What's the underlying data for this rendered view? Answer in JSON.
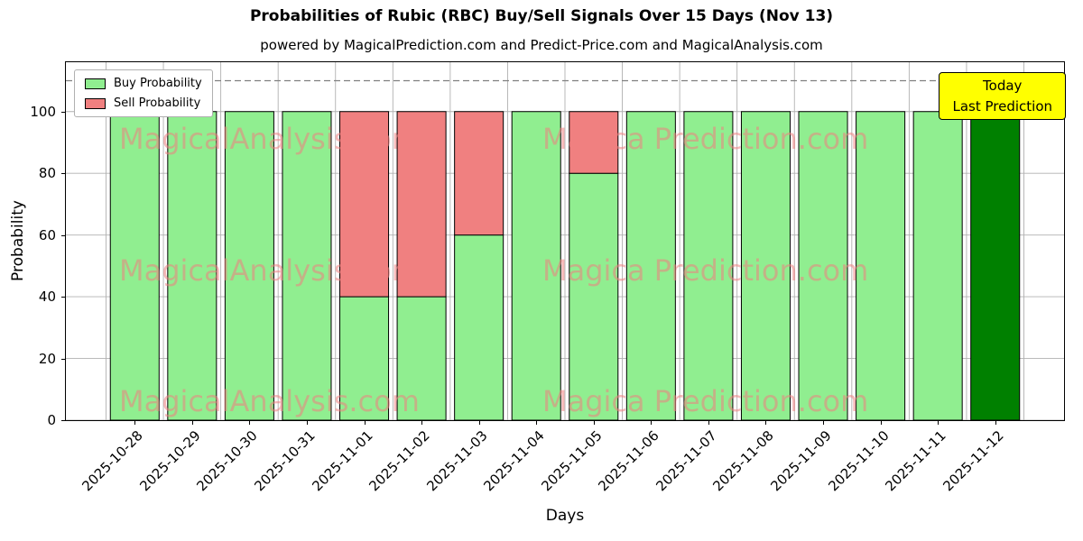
{
  "chart_data": {
    "type": "bar",
    "stacked": true,
    "title": "Probabilities of Rubic (RBC) Buy/Sell Signals Over 15 Days (Nov 13)",
    "subtitle": "powered by MagicalPrediction.com and Predict-Price.com and MagicalAnalysis.com",
    "xlabel": "Days",
    "ylabel": "Probability",
    "ylim": [
      0,
      116
    ],
    "yticks": [
      0,
      20,
      40,
      60,
      80,
      100
    ],
    "grid": true,
    "dashed_reference_line_y": 110,
    "categories": [
      "2025-10-28",
      "2025-10-29",
      "2025-10-30",
      "2025-10-31",
      "2025-11-01",
      "2025-11-02",
      "2025-11-03",
      "2025-11-04",
      "2025-11-05",
      "2025-11-06",
      "2025-11-07",
      "2025-11-08",
      "2025-11-09",
      "2025-11-10",
      "2025-11-11",
      "2025-11-12"
    ],
    "series": [
      {
        "name": "Buy Probability",
        "color": "#90ee90",
        "values": [
          100,
          100,
          100,
          100,
          40,
          40,
          60,
          100,
          80,
          100,
          100,
          100,
          100,
          100,
          100,
          100
        ]
      },
      {
        "name": "Sell Probability",
        "color": "#f08080",
        "values": [
          0,
          0,
          0,
          0,
          60,
          60,
          40,
          0,
          20,
          0,
          0,
          0,
          0,
          0,
          0,
          0
        ]
      }
    ],
    "today_bar": {
      "category": "2025-11-12",
      "index": 15,
      "color": "#008000"
    },
    "legend": {
      "position": "upper-left",
      "entries": [
        {
          "label": "Buy Probability",
          "color": "#90ee90"
        },
        {
          "label": "Sell Probability",
          "color": "#f08080"
        }
      ]
    },
    "annotation_box": {
      "lines": [
        "Today",
        "Last Prediction"
      ],
      "bg_color": "#ffff00",
      "border_color": "#000000"
    },
    "watermarks": {
      "left": "MagicalAnalysis.com",
      "right": "Magica Prediction.com",
      "color": "#f08080"
    },
    "colors": {
      "grid": "#b0b0b0",
      "dashed_line": "#808080",
      "bar_edge": "#000000"
    }
  }
}
